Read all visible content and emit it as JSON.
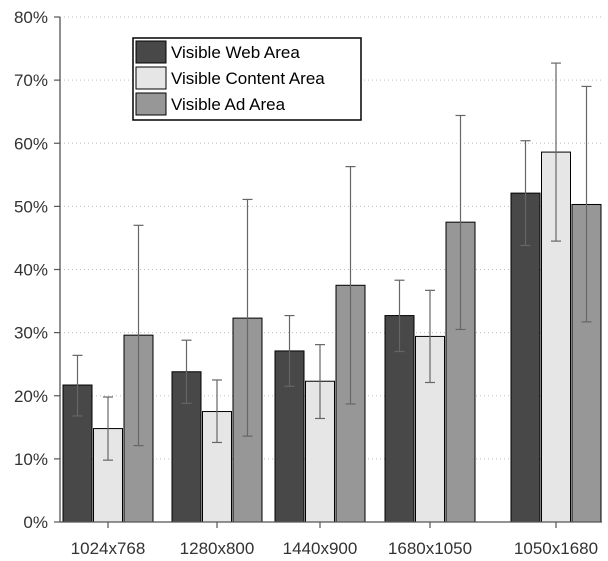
{
  "chart_data": {
    "type": "bar",
    "title": "",
    "xlabel": "",
    "ylabel": "",
    "categories": [
      "1024x768",
      "1280x800",
      "1440x900",
      "1680x1050",
      "1050x1680"
    ],
    "ylim": [
      0,
      80
    ],
    "yticks": [
      0,
      10,
      20,
      30,
      40,
      50,
      60,
      70,
      80
    ],
    "ytick_labels": [
      "0%",
      "10%",
      "20%",
      "30%",
      "40%",
      "50%",
      "60%",
      "70%",
      "80%"
    ],
    "grid": true,
    "legend_position": "top-left",
    "series": [
      {
        "name": "Visible Web Area",
        "color": "#484848",
        "values": [
          21.7,
          23.8,
          27.1,
          32.7,
          52.1
        ],
        "error_low": [
          16.8,
          18.8,
          21.5,
          27.0,
          43.8
        ],
        "error_high": [
          26.4,
          28.8,
          32.7,
          38.3,
          60.4
        ]
      },
      {
        "name": "Visible Content Area",
        "color": "#e6e6e6",
        "values": [
          14.8,
          17.5,
          22.3,
          29.4,
          58.6
        ],
        "error_low": [
          9.8,
          12.6,
          16.4,
          22.1,
          44.5
        ],
        "error_high": [
          19.8,
          22.5,
          28.1,
          36.7,
          72.7
        ]
      },
      {
        "name": "Visible Ad Area",
        "color": "#979797",
        "values": [
          29.6,
          32.3,
          37.5,
          47.5,
          50.3
        ],
        "error_low": [
          12.1,
          13.6,
          18.7,
          30.5,
          31.7
        ],
        "error_high": [
          47.0,
          51.1,
          56.3,
          64.4,
          69.0
        ]
      }
    ]
  }
}
